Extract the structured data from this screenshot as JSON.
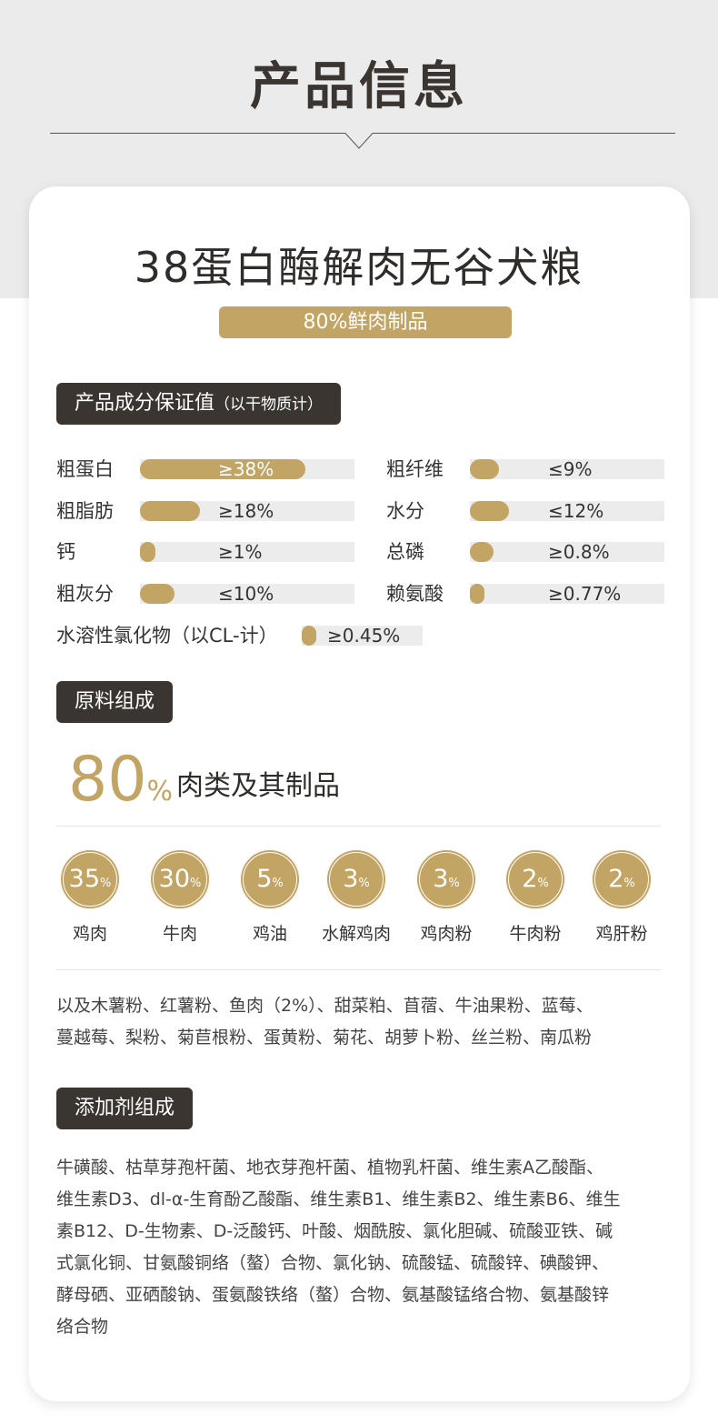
{
  "header": {
    "title": "产品信息"
  },
  "product": {
    "name": "38蛋白酶解肉无谷犬粮",
    "tagline": "80%鲜肉制品"
  },
  "nutrition": {
    "heading": "产品成分保证值",
    "heading_note": "（以干物质计）",
    "items": [
      {
        "label": "粗蛋白",
        "value": "≥38%",
        "fill": 0.77
      },
      {
        "label": "粗纤维",
        "value": "≤9%",
        "fill": 0.15
      },
      {
        "label": "粗脂肪",
        "value": "≥18%",
        "fill": 0.28
      },
      {
        "label": "水分",
        "value": "≤12%",
        "fill": 0.2
      },
      {
        "label": "钙",
        "value": "≥1%",
        "fill": 0.07
      },
      {
        "label": "总磷",
        "value": "≥0.8%",
        "fill": 0.12
      },
      {
        "label": "粗灰分",
        "value": "≤10%",
        "fill": 0.16
      },
      {
        "label": "赖氨酸",
        "value": "≥0.77%",
        "fill": 0.06
      },
      {
        "label": "水溶性氯化物（以CL-计）",
        "value": "≥0.45%",
        "fill": 0.11
      }
    ]
  },
  "ingredients": {
    "heading": "原料组成",
    "meat_percent": "80",
    "meat_unit": "%",
    "meat_desc": "肉类及其制品",
    "items": [
      {
        "pct": "35",
        "unit": "%",
        "label": "鸡肉"
      },
      {
        "pct": "30",
        "unit": "%",
        "label": "牛肉"
      },
      {
        "pct": "5",
        "unit": "%",
        "label": "鸡油"
      },
      {
        "pct": "3",
        "unit": "%",
        "label": "水解鸡肉"
      },
      {
        "pct": "3",
        "unit": "%",
        "label": "鸡肉粉"
      },
      {
        "pct": "2",
        "unit": "%",
        "label": "牛肉粉"
      },
      {
        "pct": "2",
        "unit": "%",
        "label": "鸡肝粉"
      }
    ],
    "others_line1": "以及木薯粉、红薯粉、鱼肉（2%）、甜菜粕、苜蓿、牛油果粉、蓝莓、",
    "others_line2": "蔓越莓、梨粉、菊苣根粉、蛋黄粉、菊花、胡萝卜粉、丝兰粉、南瓜粉"
  },
  "additives": {
    "heading": "添加剂组成",
    "lines": [
      "牛磺酸、枯草芽孢杆菌、地衣芽孢杆菌、植物乳杆菌、维生素A乙酸酯、",
      "维生素D3、dl-α-生育酚乙酸酯、维生素B1、维生素B2、维生素B6、维生",
      "素B12、D-生物素、D-泛酸钙、叶酸、烟酰胺、氯化胆碱、硫酸亚铁、碱",
      "式氯化铜、甘氨酸铜络（螯）合物、氯化钠、硫酸锰、硫酸锌、碘酸钾、",
      "酵母硒、亚硒酸钠、蛋氨酸铁络（螯）合物、氨基酸锰络合物、氨基酸锌",
      "络合物"
    ]
  },
  "colors": {
    "accent": "#c2a464",
    "dark": "#3a3531",
    "track": "#ececec"
  }
}
